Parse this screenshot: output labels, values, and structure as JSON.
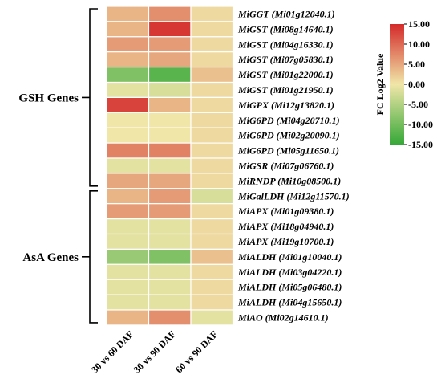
{
  "chart_data": {
    "type": "heatmap",
    "columns": [
      "30 vs 60 DAF",
      "30 vs 90 DAF",
      "60 vs 90 DAF"
    ],
    "groups": [
      {
        "label": "GSH Genes",
        "start": 0,
        "end": 11
      },
      {
        "label": "AsA Genes",
        "start": 12,
        "end": 20
      }
    ],
    "rows": [
      {
        "gene": "MiGGT (Mi01g12040.1)",
        "values": [
          4,
          7,
          1
        ]
      },
      {
        "gene": "MiGST (Mi08g14640.1)",
        "values": [
          4,
          14,
          1
        ]
      },
      {
        "gene": "MiGST (Mi04g16330.1)",
        "values": [
          6,
          6,
          1
        ]
      },
      {
        "gene": "MiGST (Mi07g05830.1)",
        "values": [
          4,
          5,
          1
        ]
      },
      {
        "gene": "MiGST (Mi01g22000.1)",
        "values": [
          -9,
          -12,
          3
        ]
      },
      {
        "gene": "MiGST (Mi01g21950.1)",
        "values": [
          -1,
          -2,
          1
        ]
      },
      {
        "gene": "MiGPX (Mi12g13820.1)",
        "values": [
          13,
          4,
          1
        ]
      },
      {
        "gene": "MiG6PD (Mi04g20710.1)",
        "values": [
          0,
          0,
          1
        ]
      },
      {
        "gene": "MiG6PD (Mi02g20090.1)",
        "values": [
          0,
          0,
          1
        ]
      },
      {
        "gene": "MiG6PD (Mi05g11650.1)",
        "values": [
          8,
          8,
          1
        ]
      },
      {
        "gene": "MiGSR (Mi07g06760.1)",
        "values": [
          -1,
          -1,
          1
        ]
      },
      {
        "gene": "MiRNDP (Mi10g08500.1)",
        "values": [
          5,
          5,
          1
        ]
      },
      {
        "gene": "MiGalLDH (Mi12g11570.1)",
        "values": [
          4,
          6,
          -2
        ]
      },
      {
        "gene": "MiAPX (Mi01g09380.1)",
        "values": [
          6,
          6,
          1
        ]
      },
      {
        "gene": "MiAPX (Mi18g04940.1)",
        "values": [
          -1,
          -1,
          1
        ]
      },
      {
        "gene": "MiAPX (Mi19g10700.1)",
        "values": [
          -1,
          -1,
          1
        ]
      },
      {
        "gene": "MiALDH (Mi01g10040.1)",
        "values": [
          -7,
          -9,
          3
        ]
      },
      {
        "gene": "MiALDH (Mi03g04220.1)",
        "values": [
          -1,
          -1,
          1
        ]
      },
      {
        "gene": "MiALDH (Mi05g06480.1)",
        "values": [
          -1,
          -1,
          1
        ]
      },
      {
        "gene": "MiALDH (Mi04g15650.1)",
        "values": [
          -1,
          -1,
          1
        ]
      },
      {
        "gene": "MiAO (Mi02g14610.1)",
        "values": [
          4,
          7,
          -1
        ]
      }
    ],
    "colorbar": {
      "title": "FC Log2 Value",
      "range": [
        -15,
        15
      ],
      "ticks": [
        "15.00",
        "10.00",
        "5.00",
        "0.00",
        "-5.00",
        "-10.00",
        "-15.00"
      ],
      "tick_values": [
        15,
        10,
        5,
        0,
        -5,
        -10,
        -15
      ],
      "colors": {
        "low": "#35a838",
        "mid": "#f0e6a8",
        "high": "#d42a2a"
      }
    },
    "grid": false,
    "legend_placement": "top-right"
  }
}
